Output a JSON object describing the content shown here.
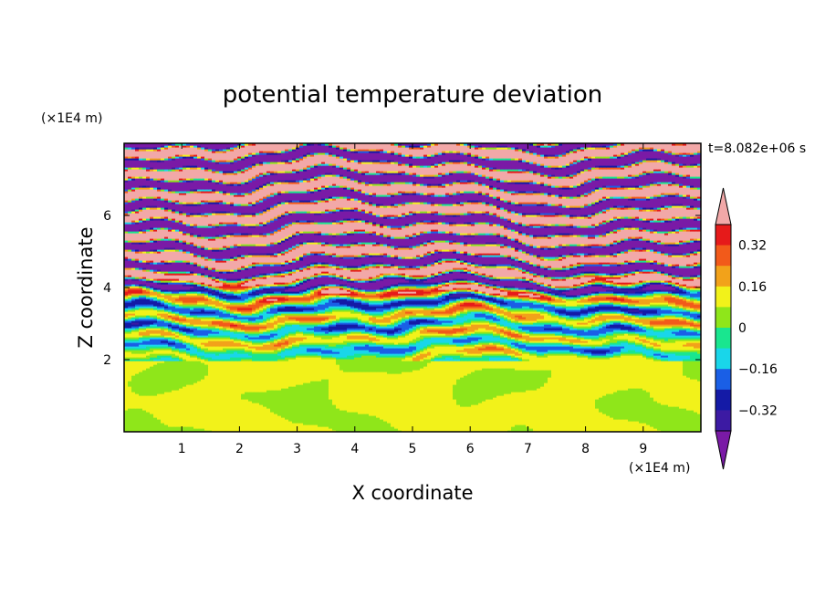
{
  "chart_data": {
    "type": "heatmap",
    "title": "potential temperature deviation",
    "xlabel": "X coordinate",
    "ylabel": "Z coordinate",
    "x_unit": "(×1E4 m)",
    "y_unit": "(×1E4 m)",
    "time_label": "t=8.082e+06 s",
    "xlim": [
      0,
      10
    ],
    "ylim": [
      0,
      8
    ],
    "x_ticks": [
      "1",
      "2",
      "3",
      "4",
      "5",
      "6",
      "7",
      "8",
      "9"
    ],
    "y_ticks": [
      "2",
      "4",
      "6"
    ],
    "x_tick_values": [
      1,
      2,
      3,
      4,
      5,
      6,
      7,
      8,
      9
    ],
    "y_tick_values": [
      2,
      4,
      6
    ],
    "colorbar": {
      "levels": [
        -0.4,
        -0.32,
        -0.24,
        -0.16,
        -0.08,
        0,
        0.08,
        0.16,
        0.24,
        0.32,
        0.4
      ],
      "colors": [
        "#7a1aa6",
        "#3c1aa3",
        "#141aa6",
        "#1a5fe6",
        "#19d6ea",
        "#19e68f",
        "#8fe61a",
        "#f2f21a",
        "#f2a21a",
        "#f25a1a",
        "#e61a1a",
        "#f2a8a8"
      ],
      "tick_labels": [
        "0.32",
        "0.16",
        "0",
        "−0.16",
        "−0.32"
      ],
      "tick_values": [
        0.32,
        0.16,
        0,
        -0.16,
        -0.32
      ]
    }
  }
}
